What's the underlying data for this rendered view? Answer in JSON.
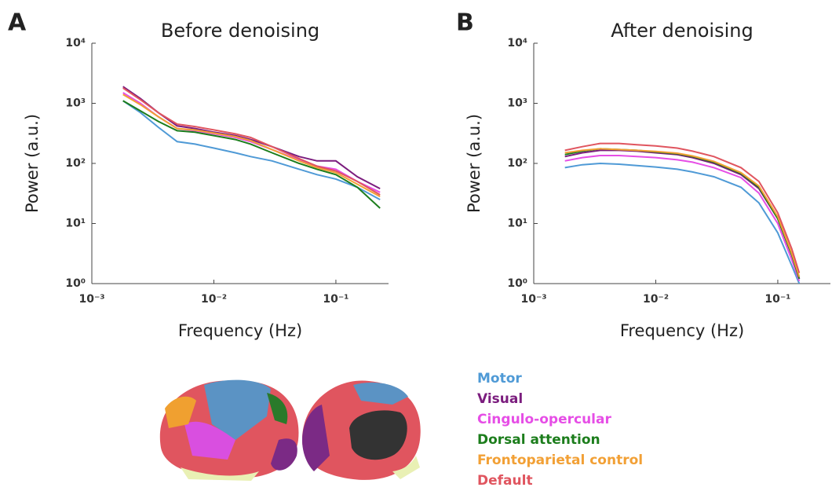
{
  "chart_data": [
    {
      "type": "line",
      "panel": "A",
      "title": "Before denoising",
      "x_label": "Frequency (Hz)",
      "y_label": "Power (a.u.)",
      "xscale": "log",
      "yscale": "log",
      "xlim": [
        0.001,
        0.27
      ],
      "ylim": [
        1,
        10000
      ],
      "xticks": [
        {
          "value": 0.001,
          "label": "10⁻³"
        },
        {
          "value": 0.01,
          "label": "10⁻²"
        },
        {
          "value": 0.1,
          "label": "10⁻¹"
        }
      ],
      "yticks": [
        {
          "value": 1,
          "label": "10⁰"
        },
        {
          "value": 10,
          "label": "10¹"
        },
        {
          "value": 100,
          "label": "10²"
        },
        {
          "value": 1000,
          "label": "10³"
        },
        {
          "value": 10000,
          "label": "10⁴"
        }
      ],
      "x": [
        0.0018,
        0.0025,
        0.0035,
        0.005,
        0.007,
        0.01,
        0.015,
        0.02,
        0.03,
        0.05,
        0.07,
        0.1,
        0.15,
        0.23
      ],
      "series": [
        {
          "name": "Motor",
          "color": "#4f9ad6",
          "values": [
            1100,
            700,
            400,
            230,
            210,
            180,
            150,
            130,
            110,
            80,
            65,
            55,
            40,
            25
          ]
        },
        {
          "name": "Visual",
          "color": "#7b1d7e",
          "values": [
            1900,
            1200,
            700,
            420,
            380,
            330,
            290,
            250,
            190,
            130,
            110,
            110,
            60,
            38
          ]
        },
        {
          "name": "Cingulo-opercular",
          "color": "#e64ee6",
          "values": [
            1500,
            1000,
            600,
            380,
            350,
            310,
            270,
            230,
            170,
            115,
            90,
            80,
            50,
            33
          ]
        },
        {
          "name": "Dorsal attention",
          "color": "#1c7d1c",
          "values": [
            1100,
            750,
            500,
            350,
            330,
            290,
            250,
            210,
            150,
            100,
            80,
            65,
            40,
            18
          ]
        },
        {
          "name": "Frontoparietal control",
          "color": "#f2a035",
          "values": [
            1400,
            950,
            600,
            380,
            360,
            320,
            280,
            240,
            170,
            110,
            85,
            70,
            45,
            28
          ]
        },
        {
          "name": "Default",
          "color": "#e0555f",
          "values": [
            1800,
            1150,
            700,
            450,
            410,
            360,
            310,
            270,
            190,
            120,
            90,
            75,
            50,
            30
          ]
        }
      ]
    },
    {
      "type": "line",
      "panel": "B",
      "title": "After denoising",
      "x_label": "Frequency (Hz)",
      "y_label": "Power (a.u.)",
      "xscale": "log",
      "yscale": "log",
      "xlim": [
        0.001,
        0.27
      ],
      "ylim": [
        1,
        10000
      ],
      "xticks": [
        {
          "value": 0.001,
          "label": "10⁻³"
        },
        {
          "value": 0.01,
          "label": "10⁻²"
        },
        {
          "value": 0.1,
          "label": "10⁻¹"
        }
      ],
      "yticks": [
        {
          "value": 1,
          "label": "10⁰"
        },
        {
          "value": 10,
          "label": "10¹"
        },
        {
          "value": 100,
          "label": "10²"
        },
        {
          "value": 1000,
          "label": "10³"
        },
        {
          "value": 10000,
          "label": "10⁴"
        }
      ],
      "x": [
        0.0018,
        0.0025,
        0.0035,
        0.005,
        0.007,
        0.01,
        0.015,
        0.02,
        0.03,
        0.05,
        0.07,
        0.1,
        0.13,
        0.15
      ],
      "series": [
        {
          "color": "#4f9ad6",
          "values": [
            85,
            95,
            100,
            97,
            92,
            87,
            80,
            72,
            60,
            40,
            22,
            7,
            2,
            1
          ]
        },
        {
          "color": "#7b1d7e",
          "values": [
            130,
            150,
            165,
            165,
            160,
            150,
            140,
            125,
            100,
            65,
            38,
            12,
            3,
            1.2
          ]
        },
        {
          "color": "#e64ee6",
          "values": [
            110,
            125,
            135,
            135,
            130,
            125,
            115,
            105,
            85,
            58,
            32,
            10,
            2.5,
            1.1
          ]
        },
        {
          "color": "#1c7d1c",
          "values": [
            140,
            160,
            175,
            170,
            165,
            155,
            145,
            130,
            105,
            68,
            40,
            12,
            3,
            1.2
          ]
        },
        {
          "color": "#f2a035",
          "values": [
            150,
            165,
            175,
            170,
            165,
            158,
            148,
            133,
            108,
            70,
            42,
            13,
            3.2,
            1.3
          ]
        },
        {
          "color": "#e0555f",
          "values": [
            165,
            190,
            215,
            215,
            205,
            195,
            180,
            160,
            130,
            85,
            50,
            15,
            3.8,
            1.5
          ]
        }
      ]
    }
  ]
}
